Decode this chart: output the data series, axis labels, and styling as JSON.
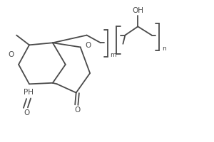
{
  "line_color": "#4a4a4a",
  "line_width": 1.3,
  "font_size": 7.5,
  "figsize": [
    3.0,
    2.0
  ],
  "dpi": 100,
  "xlim": [
    0,
    10
  ],
  "ylim": [
    0,
    6.5
  ]
}
